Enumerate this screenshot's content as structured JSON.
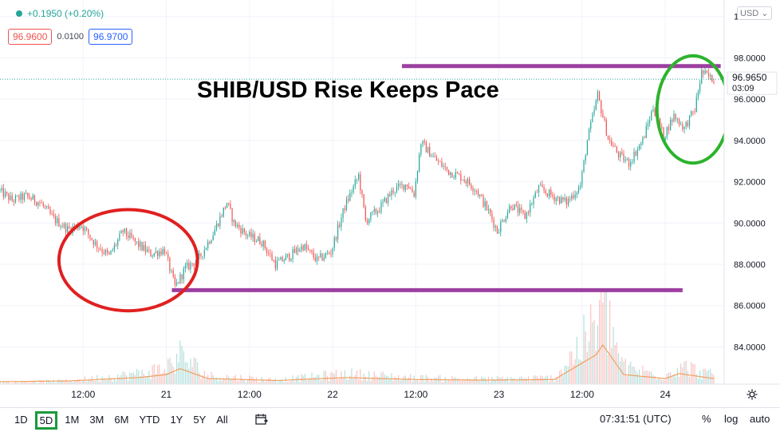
{
  "header": {
    "change": "+0.1950 (+0.20%)",
    "sell_price": "96.9600",
    "spread": "0.0100",
    "buy_price": "96.9700",
    "currency": "USD"
  },
  "annotation": {
    "title": "SHIB/USD Rise Keeps Pace"
  },
  "price_label": {
    "value": "96.9650",
    "countdown": "03:09"
  },
  "bottom_bar": {
    "ranges": [
      "1D",
      "5D",
      "1M",
      "3M",
      "6M",
      "YTD",
      "1Y",
      "5Y",
      "All"
    ],
    "active_range": "5D",
    "clock": "07:31:51 (UTC)",
    "percent_label": "%",
    "log_label": "log",
    "auto_label": "auto"
  },
  "colors": {
    "up": "#26a69a",
    "down": "#ef5350",
    "purple_line": "#9c3fa0",
    "red_circle": "#e02020",
    "green_circle": "#2db32d",
    "axis_text": "#131722"
  },
  "chart_data": {
    "type": "candlestick",
    "y_ticks": [
      "84.0000",
      "86.0000",
      "88.0000",
      "90.0000",
      "92.0000",
      "94.0000",
      "96.0000",
      "98.0000",
      "100.0000"
    ],
    "y_tick_values": [
      84,
      86,
      88,
      90,
      92,
      94,
      96,
      98,
      100
    ],
    "x_ticks": [
      "12:00",
      "21",
      "12:00",
      "22",
      "12:00",
      "23",
      "12:00",
      "24"
    ],
    "x_tick_hours": [
      12,
      24,
      36,
      48,
      60,
      72,
      84,
      96
    ],
    "x_range_hours": [
      0,
      104.5
    ],
    "ylim": [
      82.2,
      100.8
    ],
    "price_path": [
      [
        0,
        91.6
      ],
      [
        2,
        91.1
      ],
      [
        4,
        91.3
      ],
      [
        6,
        91.0
      ],
      [
        8,
        90.2
      ],
      [
        10,
        89.7
      ],
      [
        12,
        89.9
      ],
      [
        14,
        89.0
      ],
      [
        16,
        88.4
      ],
      [
        18,
        89.6
      ],
      [
        20,
        89.0
      ],
      [
        22,
        88.5
      ],
      [
        24,
        88.7
      ],
      [
        25.5,
        86.9
      ],
      [
        27,
        87.8
      ],
      [
        29,
        88.3
      ],
      [
        31,
        89.5
      ],
      [
        33,
        91.0
      ],
      [
        34,
        90.0
      ],
      [
        36,
        89.4
      ],
      [
        38,
        89.1
      ],
      [
        40,
        88.0
      ],
      [
        42,
        88.4
      ],
      [
        44,
        88.9
      ],
      [
        46,
        88.2
      ],
      [
        48,
        88.6
      ],
      [
        50,
        90.8
      ],
      [
        52,
        92.3
      ],
      [
        53,
        90.1
      ],
      [
        55,
        90.7
      ],
      [
        57,
        91.6
      ],
      [
        59,
        91.9
      ],
      [
        60,
        91.4
      ],
      [
        61,
        93.9
      ],
      [
        63,
        93.1
      ],
      [
        65,
        92.5
      ],
      [
        67,
        92.2
      ],
      [
        69,
        91.6
      ],
      [
        71,
        90.4
      ],
      [
        72,
        89.6
      ],
      [
        74,
        90.9
      ],
      [
        76,
        90.3
      ],
      [
        78,
        91.7
      ],
      [
        80,
        91.3
      ],
      [
        82,
        91.0
      ],
      [
        84,
        91.8
      ],
      [
        85,
        94.0
      ],
      [
        86.5,
        96.2
      ],
      [
        88,
        94.1
      ],
      [
        89.5,
        93.3
      ],
      [
        91,
        92.9
      ],
      [
        93,
        94.0
      ],
      [
        94.5,
        95.6
      ],
      [
        96,
        94.2
      ],
      [
        97.5,
        95.2
      ],
      [
        99,
        94.6
      ],
      [
        100.5,
        95.5
      ],
      [
        101.5,
        97.3
      ],
      [
        103,
        96.97
      ]
    ],
    "volume_path": [
      [
        0,
        0.4
      ],
      [
        10,
        0.8
      ],
      [
        20,
        2.5
      ],
      [
        24,
        4.0
      ],
      [
        26,
        7.0
      ],
      [
        30,
        2.0
      ],
      [
        40,
        1.0
      ],
      [
        50,
        2.5
      ],
      [
        60,
        1.5
      ],
      [
        70,
        1.2
      ],
      [
        80,
        1.5
      ],
      [
        86,
        14.0
      ],
      [
        87,
        19.0
      ],
      [
        90,
        4.0
      ],
      [
        96,
        2.0
      ],
      [
        98,
        4.5
      ],
      [
        104,
        1.5
      ]
    ],
    "horizontal_levels": [
      {
        "value": 97.6,
        "from_hour": 58,
        "to_hour": 104
      },
      {
        "value": 86.75,
        "from_hour": 24.8,
        "to_hour": 98.5
      }
    ],
    "highlight_ellipses": [
      {
        "color": "red",
        "center_hour": 18.5,
        "center_value": 88.2,
        "rx_hours": 10.0,
        "ry_value": 2.45
      },
      {
        "color": "green",
        "center_hour": 100.0,
        "center_value": 95.5,
        "rx_hours": 5.2,
        "ry_value": 2.6
      }
    ],
    "last_price": 96.965
  }
}
